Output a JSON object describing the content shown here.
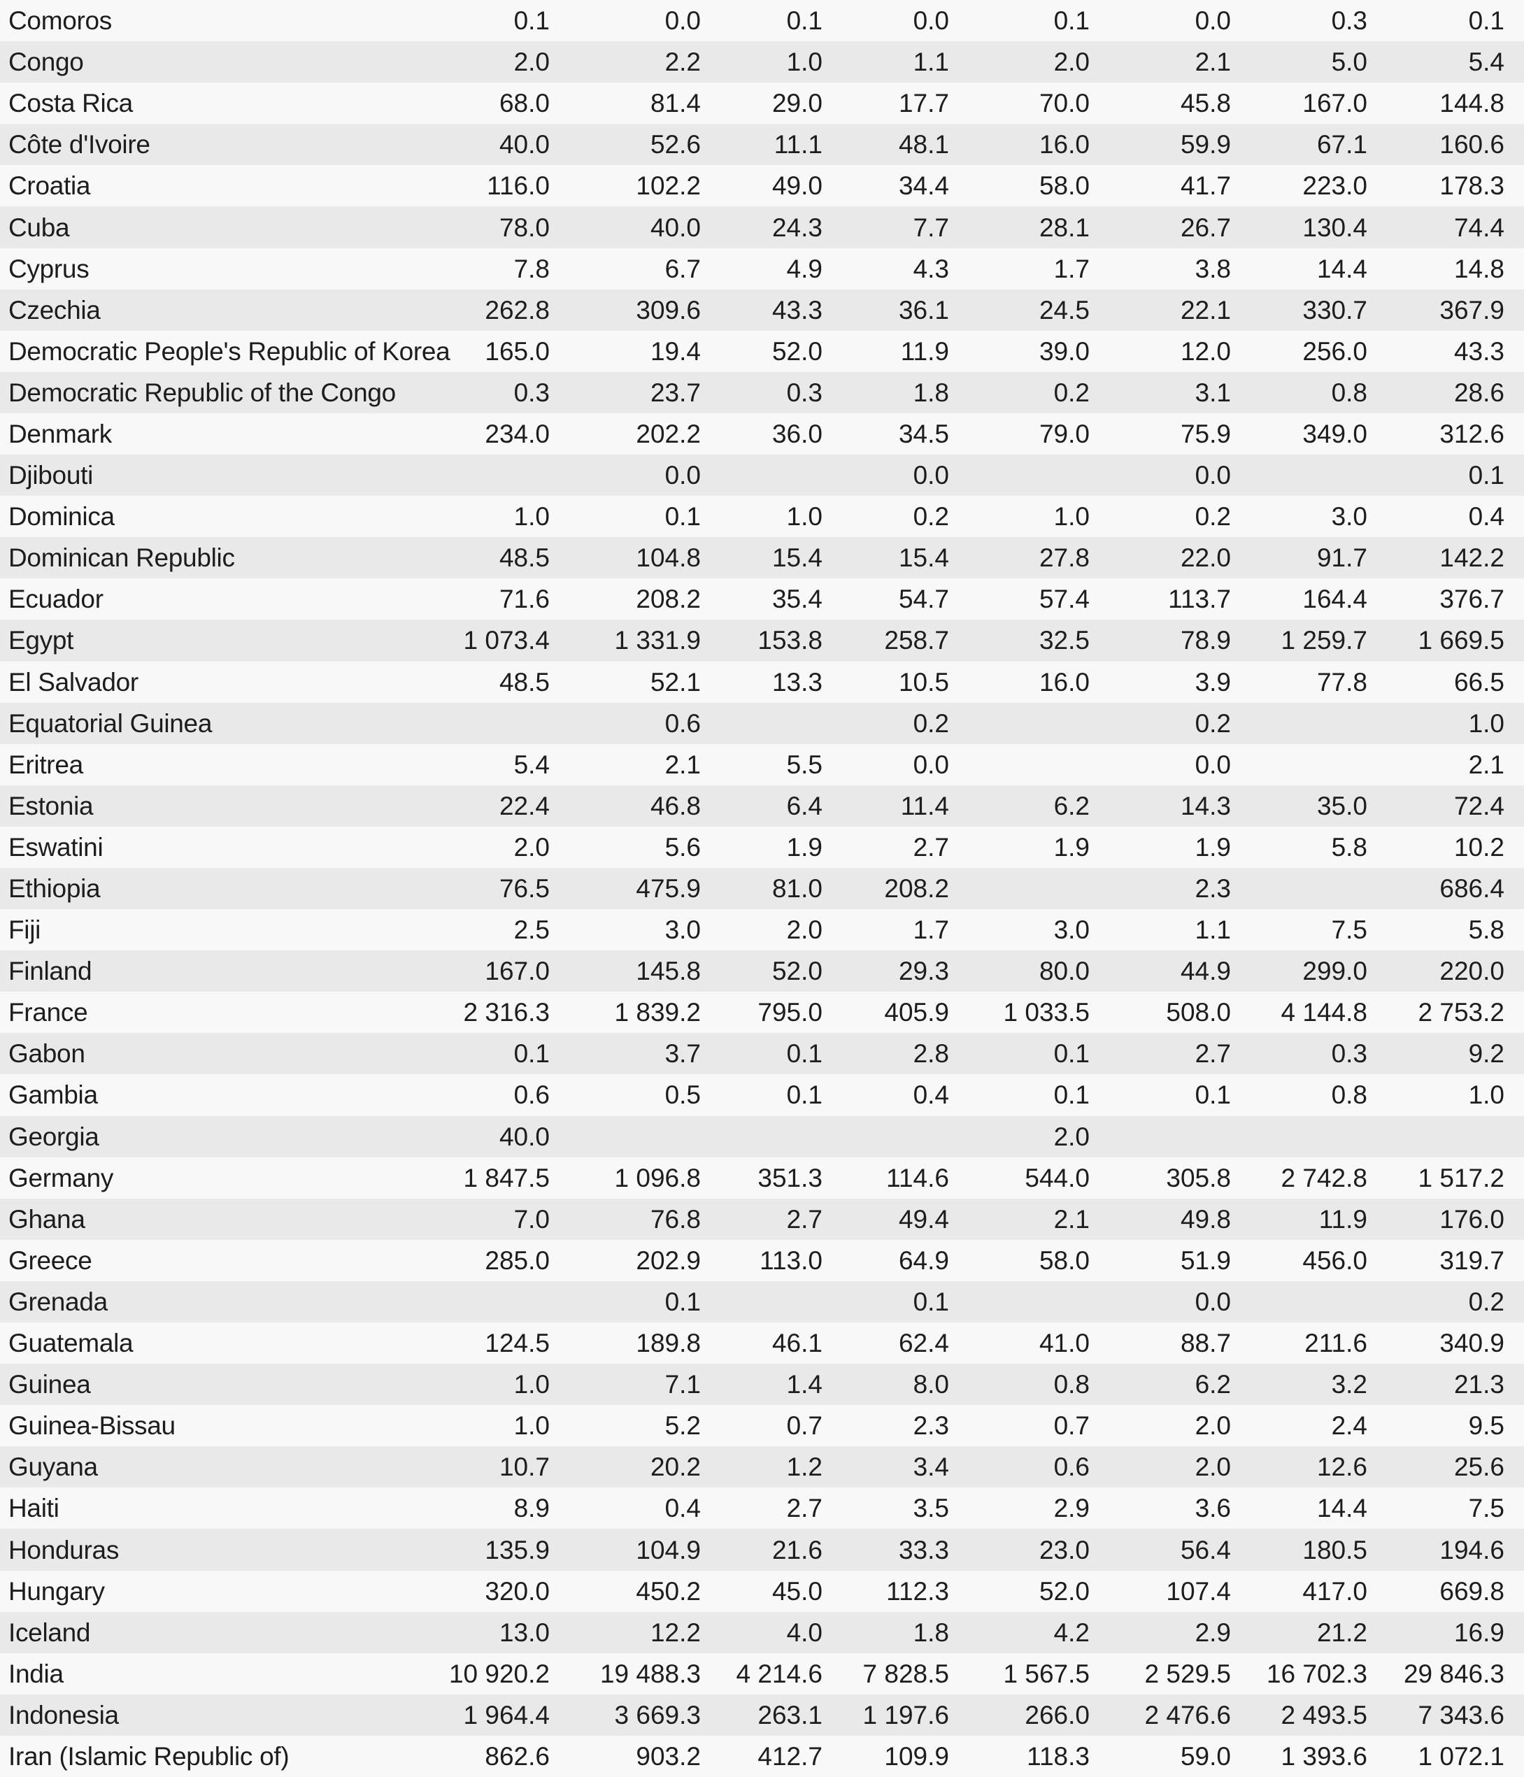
{
  "style": {
    "row_light": "#f8f8f8",
    "row_dark": "#e9e9e9",
    "text_color": "#1d1d1d"
  },
  "table": {
    "rows": [
      {
        "name": "Comoros",
        "values": [
          "0.1",
          "0.0",
          "0.1",
          "0.0",
          "0.1",
          "0.0",
          "0.3",
          "0.1"
        ]
      },
      {
        "name": "Congo",
        "values": [
          "2.0",
          "2.2",
          "1.0",
          "1.1",
          "2.0",
          "2.1",
          "5.0",
          "5.4"
        ]
      },
      {
        "name": "Costa Rica",
        "values": [
          "68.0",
          "81.4",
          "29.0",
          "17.7",
          "70.0",
          "45.8",
          "167.0",
          "144.8"
        ]
      },
      {
        "name": "Côte d'Ivoire",
        "values": [
          "40.0",
          "52.6",
          "11.1",
          "48.1",
          "16.0",
          "59.9",
          "67.1",
          "160.6"
        ]
      },
      {
        "name": "Croatia",
        "values": [
          "116.0",
          "102.2",
          "49.0",
          "34.4",
          "58.0",
          "41.7",
          "223.0",
          "178.3"
        ]
      },
      {
        "name": "Cuba",
        "values": [
          "78.0",
          "40.0",
          "24.3",
          "7.7",
          "28.1",
          "26.7",
          "130.4",
          "74.4"
        ]
      },
      {
        "name": "Cyprus",
        "values": [
          "7.8",
          "6.7",
          "4.9",
          "4.3",
          "1.7",
          "3.8",
          "14.4",
          "14.8"
        ]
      },
      {
        "name": "Czechia",
        "values": [
          "262.8",
          "309.6",
          "43.3",
          "36.1",
          "24.5",
          "22.1",
          "330.7",
          "367.9"
        ]
      },
      {
        "name": "Democratic People's Republic of Korea",
        "values": [
          "165.0",
          "19.4",
          "52.0",
          "11.9",
          "39.0",
          "12.0",
          "256.0",
          "43.3"
        ]
      },
      {
        "name": "Democratic Republic of the Congo",
        "values": [
          "0.3",
          "23.7",
          "0.3",
          "1.8",
          "0.2",
          "3.1",
          "0.8",
          "28.6"
        ]
      },
      {
        "name": "Denmark",
        "values": [
          "234.0",
          "202.2",
          "36.0",
          "34.5",
          "79.0",
          "75.9",
          "349.0",
          "312.6"
        ]
      },
      {
        "name": "Djibouti",
        "values": [
          "",
          "0.0",
          "",
          "0.0",
          "",
          "0.0",
          "",
          "0.1"
        ]
      },
      {
        "name": "Dominica",
        "values": [
          "1.0",
          "0.1",
          "1.0",
          "0.2",
          "1.0",
          "0.2",
          "3.0",
          "0.4"
        ]
      },
      {
        "name": "Dominican Republic",
        "values": [
          "48.5",
          "104.8",
          "15.4",
          "15.4",
          "27.8",
          "22.0",
          "91.7",
          "142.2"
        ]
      },
      {
        "name": "Ecuador",
        "values": [
          "71.6",
          "208.2",
          "35.4",
          "54.7",
          "57.4",
          "113.7",
          "164.4",
          "376.7"
        ]
      },
      {
        "name": "Egypt",
        "values": [
          "1 073.4",
          "1 331.9",
          "153.8",
          "258.7",
          "32.5",
          "78.9",
          "1 259.7",
          "1 669.5"
        ]
      },
      {
        "name": "El Salvador",
        "values": [
          "48.5",
          "52.1",
          "13.3",
          "10.5",
          "16.0",
          "3.9",
          "77.8",
          "66.5"
        ]
      },
      {
        "name": "Equatorial Guinea",
        "values": [
          "",
          "0.6",
          "",
          "0.2",
          "",
          "0.2",
          "",
          "1.0"
        ]
      },
      {
        "name": "Eritrea",
        "values": [
          "5.4",
          "2.1",
          "5.5",
          "0.0",
          "",
          "0.0",
          "",
          "2.1"
        ]
      },
      {
        "name": "Estonia",
        "values": [
          "22.4",
          "46.8",
          "6.4",
          "11.4",
          "6.2",
          "14.3",
          "35.0",
          "72.4"
        ]
      },
      {
        "name": "Eswatini",
        "values": [
          "2.0",
          "5.6",
          "1.9",
          "2.7",
          "1.9",
          "1.9",
          "5.8",
          "10.2"
        ]
      },
      {
        "name": "Ethiopia",
        "values": [
          "76.5",
          "475.9",
          "81.0",
          "208.2",
          "",
          "2.3",
          "",
          "686.4"
        ]
      },
      {
        "name": "Fiji",
        "values": [
          "2.5",
          "3.0",
          "2.0",
          "1.7",
          "3.0",
          "1.1",
          "7.5",
          "5.8"
        ]
      },
      {
        "name": "Finland",
        "values": [
          "167.0",
          "145.8",
          "52.0",
          "29.3",
          "80.0",
          "44.9",
          "299.0",
          "220.0"
        ]
      },
      {
        "name": "France",
        "values": [
          "2 316.3",
          "1 839.2",
          "795.0",
          "405.9",
          "1 033.5",
          "508.0",
          "4 144.8",
          "2 753.2"
        ]
      },
      {
        "name": "Gabon",
        "values": [
          "0.1",
          "3.7",
          "0.1",
          "2.8",
          "0.1",
          "2.7",
          "0.3",
          "9.2"
        ]
      },
      {
        "name": "Gambia",
        "values": [
          "0.6",
          "0.5",
          "0.1",
          "0.4",
          "0.1",
          "0.1",
          "0.8",
          "1.0"
        ]
      },
      {
        "name": "Georgia",
        "values": [
          "40.0",
          "",
          "",
          "",
          "2.0",
          "",
          "",
          ""
        ]
      },
      {
        "name": "Germany",
        "values": [
          "1 847.5",
          "1 096.8",
          "351.3",
          "114.6",
          "544.0",
          "305.8",
          "2 742.8",
          "1 517.2"
        ]
      },
      {
        "name": "Ghana",
        "values": [
          "7.0",
          "76.8",
          "2.7",
          "49.4",
          "2.1",
          "49.8",
          "11.9",
          "176.0"
        ]
      },
      {
        "name": "Greece",
        "values": [
          "285.0",
          "202.9",
          "113.0",
          "64.9",
          "58.0",
          "51.9",
          "456.0",
          "319.7"
        ]
      },
      {
        "name": "Grenada",
        "values": [
          "",
          "0.1",
          "",
          "0.1",
          "",
          "0.0",
          "",
          "0.2"
        ]
      },
      {
        "name": "Guatemala",
        "values": [
          "124.5",
          "189.8",
          "46.1",
          "62.4",
          "41.0",
          "88.7",
          "211.6",
          "340.9"
        ]
      },
      {
        "name": "Guinea",
        "values": [
          "1.0",
          "7.1",
          "1.4",
          "8.0",
          "0.8",
          "6.2",
          "3.2",
          "21.3"
        ]
      },
      {
        "name": "Guinea-Bissau",
        "values": [
          "1.0",
          "5.2",
          "0.7",
          "2.3",
          "0.7",
          "2.0",
          "2.4",
          "9.5"
        ]
      },
      {
        "name": "Guyana",
        "values": [
          "10.7",
          "20.2",
          "1.2",
          "3.4",
          "0.6",
          "2.0",
          "12.6",
          "25.6"
        ]
      },
      {
        "name": "Haiti",
        "values": [
          "8.9",
          "0.4",
          "2.7",
          "3.5",
          "2.9",
          "3.6",
          "14.4",
          "7.5"
        ]
      },
      {
        "name": "Honduras",
        "values": [
          "135.9",
          "104.9",
          "21.6",
          "33.3",
          "23.0",
          "56.4",
          "180.5",
          "194.6"
        ]
      },
      {
        "name": "Hungary",
        "values": [
          "320.0",
          "450.2",
          "45.0",
          "112.3",
          "52.0",
          "107.4",
          "417.0",
          "669.8"
        ]
      },
      {
        "name": "Iceland",
        "values": [
          "13.0",
          "12.2",
          "4.0",
          "1.8",
          "4.2",
          "2.9",
          "21.2",
          "16.9"
        ]
      },
      {
        "name": "India",
        "values": [
          "10 920.2",
          "19 488.3",
          "4 214.6",
          "7 828.5",
          "1 567.5",
          "2 529.5",
          "16 702.3",
          "29 846.3"
        ]
      },
      {
        "name": "Indonesia",
        "values": [
          "1 964.4",
          "3 669.3",
          "263.1",
          "1 197.6",
          "266.0",
          "2 476.6",
          "2 493.5",
          "7 343.6"
        ]
      },
      {
        "name": "Iran (Islamic Republic of)",
        "values": [
          "862.6",
          "903.2",
          "412.7",
          "109.9",
          "118.3",
          "59.0",
          "1 393.6",
          "1 072.1"
        ]
      }
    ]
  }
}
